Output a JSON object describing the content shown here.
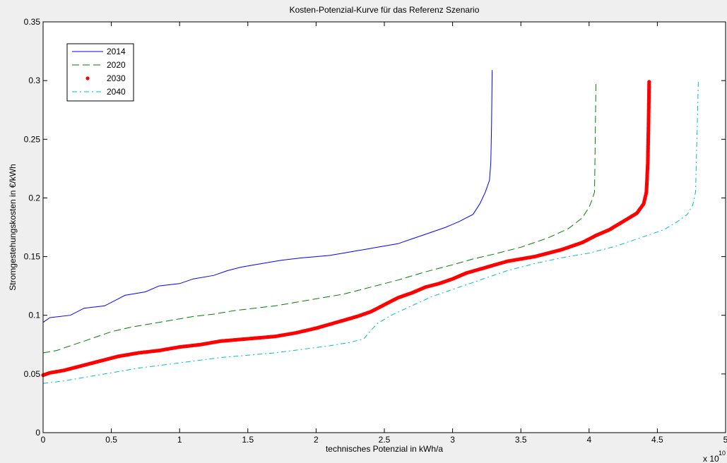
{
  "chart_data": {
    "type": "line",
    "title": "Kosten-Potenzial-Kurve für das Referenz Szenario",
    "xlabel": "technisches Potenzial in kWh/a",
    "ylabel": "Stromgestehungskosten in €/kWh",
    "x_multiplier_label": "x 10",
    "x_multiplier_exponent": "10",
    "xlim": [
      0,
      5
    ],
    "ylim": [
      0,
      0.35
    ],
    "xticks": [
      "0",
      "0.5",
      "1",
      "1.5",
      "2",
      "2.5",
      "3",
      "3.5",
      "4",
      "4.5",
      "5"
    ],
    "yticks": [
      "0",
      "0.05",
      "0.1",
      "0.15",
      "0.2",
      "0.25",
      "0.3",
      "0.35"
    ],
    "grid": false,
    "legend_position": "top-left",
    "series": [
      {
        "name": "2014",
        "color": "#0000ff",
        "style": "solid",
        "x": [
          0,
          0.05,
          0.2,
          0.3,
          0.45,
          0.55,
          0.6,
          0.75,
          0.85,
          1.0,
          1.1,
          1.25,
          1.35,
          1.45,
          1.6,
          1.75,
          1.9,
          2.0,
          2.1,
          2.2,
          2.3,
          2.45,
          2.6,
          2.7,
          2.8,
          2.95,
          3.05,
          3.15,
          3.2,
          3.24,
          3.27,
          3.28,
          3.285,
          3.29
        ],
        "y": [
          0.094,
          0.098,
          0.1,
          0.106,
          0.108,
          0.114,
          0.117,
          0.12,
          0.125,
          0.127,
          0.131,
          0.134,
          0.138,
          0.141,
          0.144,
          0.147,
          0.149,
          0.15,
          0.151,
          0.153,
          0.155,
          0.158,
          0.161,
          0.165,
          0.169,
          0.175,
          0.18,
          0.186,
          0.195,
          0.205,
          0.215,
          0.23,
          0.26,
          0.309
        ]
      },
      {
        "name": "2020",
        "color": "#007f00",
        "style": "dashed",
        "x": [
          0,
          0.1,
          0.2,
          0.3,
          0.4,
          0.5,
          0.65,
          0.8,
          0.95,
          1.1,
          1.25,
          1.4,
          1.55,
          1.7,
          1.85,
          2.0,
          2.2,
          2.4,
          2.6,
          2.8,
          3.0,
          3.15,
          3.3,
          3.5,
          3.7,
          3.85,
          3.95,
          4.0,
          4.02,
          4.04,
          4.045,
          4.05
        ],
        "y": [
          0.068,
          0.07,
          0.074,
          0.078,
          0.082,
          0.086,
          0.09,
          0.093,
          0.096,
          0.099,
          0.101,
          0.104,
          0.106,
          0.108,
          0.111,
          0.114,
          0.118,
          0.124,
          0.13,
          0.137,
          0.143,
          0.148,
          0.152,
          0.158,
          0.166,
          0.174,
          0.183,
          0.192,
          0.198,
          0.205,
          0.25,
          0.299
        ]
      },
      {
        "name": "2030",
        "color": "#ff0000",
        "style": "dotted-marker",
        "x": [
          0,
          0.05,
          0.15,
          0.25,
          0.35,
          0.45,
          0.55,
          0.7,
          0.85,
          1.0,
          1.15,
          1.3,
          1.5,
          1.7,
          1.85,
          2.0,
          2.15,
          2.3,
          2.4,
          2.5,
          2.6,
          2.7,
          2.8,
          2.9,
          3.0,
          3.1,
          3.25,
          3.4,
          3.6,
          3.8,
          3.95,
          4.05,
          4.15,
          4.25,
          4.35,
          4.4,
          4.42,
          4.43,
          4.435,
          4.44
        ],
        "y": [
          0.049,
          0.051,
          0.053,
          0.056,
          0.059,
          0.062,
          0.065,
          0.068,
          0.07,
          0.073,
          0.075,
          0.078,
          0.08,
          0.082,
          0.085,
          0.089,
          0.094,
          0.099,
          0.103,
          0.109,
          0.115,
          0.119,
          0.124,
          0.127,
          0.131,
          0.136,
          0.141,
          0.146,
          0.15,
          0.156,
          0.162,
          0.168,
          0.173,
          0.18,
          0.187,
          0.195,
          0.205,
          0.23,
          0.26,
          0.299
        ]
      },
      {
        "name": "2040",
        "color": "#00bfbf",
        "style": "dashdot",
        "x": [
          0,
          0.15,
          0.3,
          0.5,
          0.7,
          0.9,
          1.1,
          1.3,
          1.5,
          1.7,
          1.9,
          2.1,
          2.25,
          2.35,
          2.4,
          2.45,
          2.55,
          2.7,
          2.85,
          3.0,
          3.2,
          3.4,
          3.6,
          3.8,
          4.0,
          4.2,
          4.4,
          4.55,
          4.65,
          4.72,
          4.76,
          4.78,
          4.79,
          4.8
        ],
        "y": [
          0.042,
          0.044,
          0.047,
          0.051,
          0.055,
          0.058,
          0.061,
          0.064,
          0.066,
          0.068,
          0.071,
          0.074,
          0.077,
          0.08,
          0.087,
          0.093,
          0.1,
          0.108,
          0.116,
          0.122,
          0.13,
          0.138,
          0.144,
          0.149,
          0.153,
          0.159,
          0.167,
          0.173,
          0.18,
          0.186,
          0.194,
          0.205,
          0.25,
          0.299
        ]
      }
    ]
  }
}
